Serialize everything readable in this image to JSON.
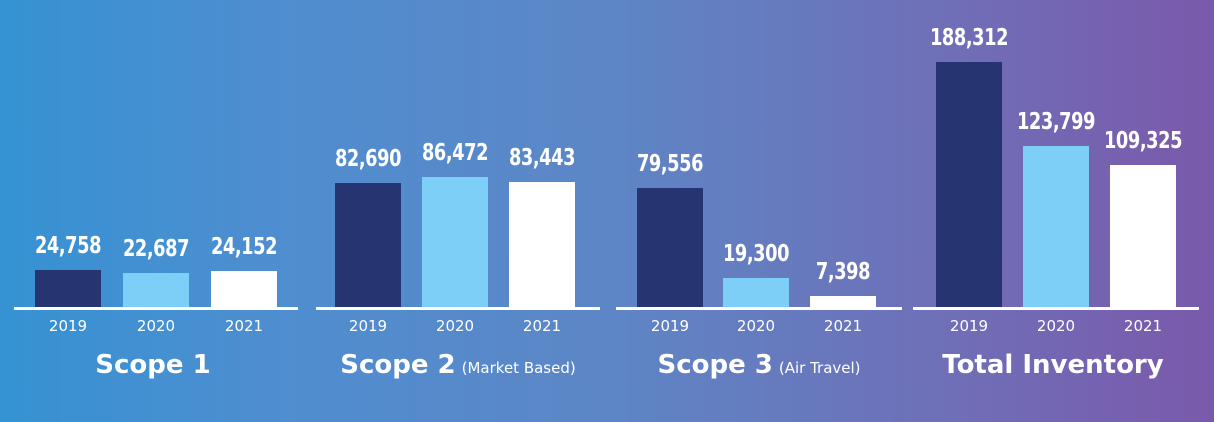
{
  "chart_data": [
    {
      "type": "bar",
      "title": "Scope 1",
      "subtitle": "",
      "categories": [
        "2019",
        "2020",
        "2021"
      ],
      "values": [
        24758,
        22687,
        24152
      ],
      "value_labels": [
        "24,758",
        "22,687",
        "24,152"
      ],
      "bar_colors": [
        "#263472",
        "#7ecff8",
        "#ffffff"
      ]
    },
    {
      "type": "bar",
      "title": "Scope 2",
      "subtitle": "(Market Based)",
      "categories": [
        "2019",
        "2020",
        "2021"
      ],
      "values": [
        82690,
        86472,
        83443
      ],
      "value_labels": [
        "82,690",
        "86,472",
        "83,443"
      ],
      "bar_colors": [
        "#263472",
        "#7ecff8",
        "#ffffff"
      ]
    },
    {
      "type": "bar",
      "title": "Scope 3",
      "subtitle": "(Air Travel)",
      "categories": [
        "2019",
        "2020",
        "2021"
      ],
      "values": [
        79556,
        19300,
        7398
      ],
      "value_labels": [
        "79,556",
        "19,300",
        "7,398"
      ],
      "bar_colors": [
        "#263472",
        "#7ecff8",
        "#ffffff"
      ]
    },
    {
      "type": "bar",
      "title": "Total Inventory",
      "subtitle": "",
      "categories": [
        "2019",
        "2020",
        "2021"
      ],
      "values": [
        188312,
        123799,
        109325
      ],
      "value_labels": [
        "188,312",
        "123,799",
        "109,325"
      ],
      "bar_colors": [
        "#263472",
        "#7ecff8",
        "#ffffff"
      ]
    }
  ]
}
